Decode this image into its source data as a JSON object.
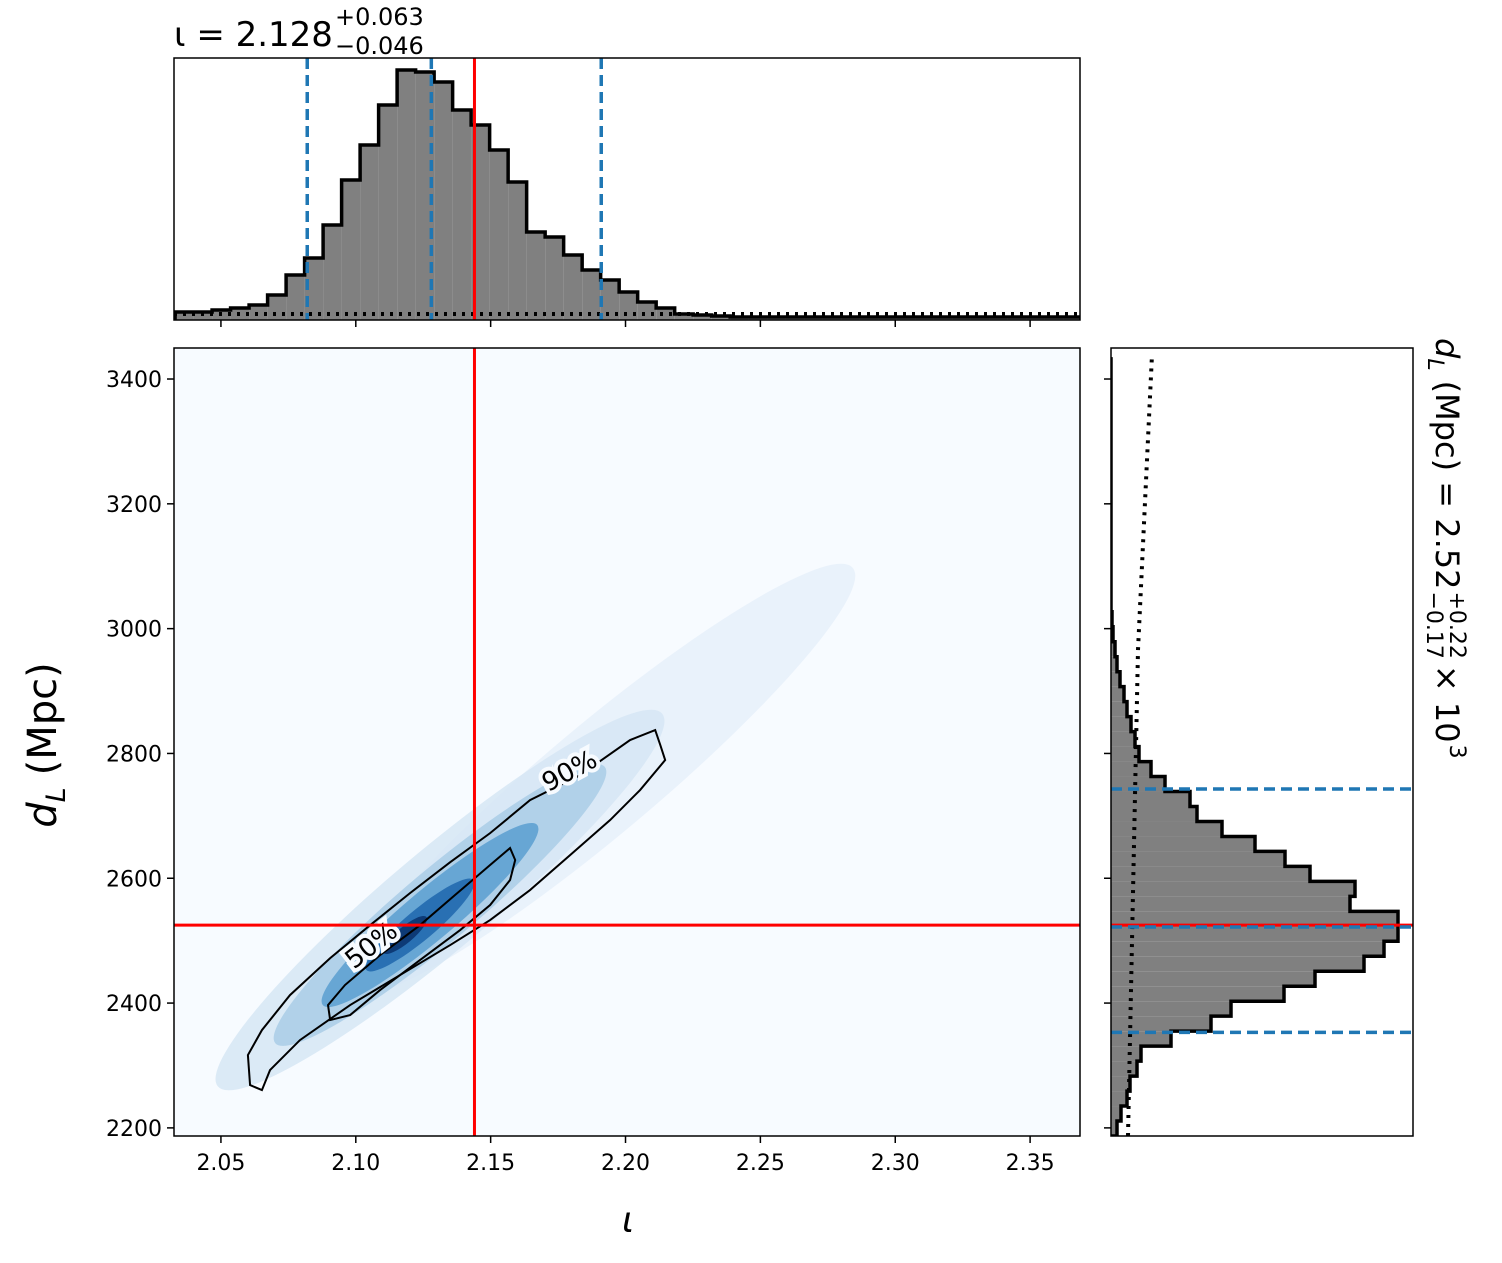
{
  "chart_data": [
    {
      "type": "histogram",
      "orientation": "vertical",
      "title": {
        "text": "ι = 2.128",
        "upper": "+0.063",
        "lower": "−0.046"
      },
      "bins": [
        2.033,
        2.03986,
        2.04672,
        2.05358,
        2.06044,
        2.0673,
        2.07416,
        2.08102,
        2.08788,
        2.09474,
        2.1016,
        2.10846,
        2.11532,
        2.12218,
        2.12904,
        2.1359,
        2.14276,
        2.14962,
        2.15648,
        2.16334,
        2.1702,
        2.17706,
        2.18392,
        2.19078,
        2.19764,
        2.2045,
        2.21136,
        2.21822,
        2.22508,
        2.23194,
        2.2388,
        2.24566,
        2.25252,
        2.25938,
        2.26624,
        2.2731,
        2.27996,
        2.28682,
        2.29368,
        2.30054,
        2.3074,
        2.31426,
        2.32112,
        2.32798,
        2.33484,
        2.3417,
        2.34856,
        2.35542,
        2.36228,
        2.36914
      ],
      "values": [
        8,
        8,
        10,
        12,
        15,
        25,
        45,
        62,
        95,
        140,
        175,
        215,
        250,
        248,
        238,
        210,
        195,
        170,
        138,
        88,
        83,
        65,
        50,
        40,
        28,
        18,
        12,
        6,
        5,
        4,
        3,
        3,
        3,
        3,
        3,
        3,
        3,
        3,
        3,
        3,
        3,
        3,
        3,
        3,
        3,
        3,
        3,
        3,
        3
      ],
      "color": "#808080",
      "edge_color": "#000000",
      "ylim": [
        0,
        262
      ],
      "prior": {
        "x": [
          2.0326,
          2.3685
        ],
        "values": [
          6,
          6
        ],
        "color": "#000000"
      },
      "quantiles": [
        2.082,
        2.128,
        2.191
      ],
      "quantile_color": "#1f77b4"
    },
    {
      "type": "contour",
      "xlabel": "ι",
      "ylabel": {
        "symbol": "d",
        "symbol_sub": "L",
        "text": "(Mpc)"
      },
      "xlim": [
        2.0326,
        2.3685
      ],
      "ylim": [
        2187,
        3449.7
      ],
      "xticks": [
        2.05,
        {
          "value": 2.1,
          "label": "2.10"
        },
        2.15,
        {
          "value": 2.2,
          "label": "2.20"
        },
        2.25,
        {
          "value": 2.3,
          "label": "2.30"
        },
        2.35
      ],
      "yticks": [
        2200,
        2400,
        2600,
        2800,
        3000,
        3200,
        3400
      ],
      "contours": [
        {
          "label": "50%",
          "x": [
            2.0905,
            2.0897,
            2.096,
            2.109,
            2.1238,
            2.1368,
            2.1498,
            2.1572,
            2.1591,
            2.1572,
            2.1498,
            2.1387,
            2.1238,
            2.109,
            2.0979
          ],
          "y": [
            2372.8,
            2396.8,
            2428.9,
            2476.9,
            2524.8,
            2573.1,
            2621.2,
            2648.4,
            2629.2,
            2597.2,
            2557.1,
            2517,
            2468.9,
            2420.8,
            2380.8
          ]
        },
        {
          "label": "90%",
          "x": [
            2.0608,
            2.06,
            2.0652,
            2.0756,
            2.0905,
            2.1053,
            2.1201,
            2.135,
            2.1498,
            2.1646,
            2.1832,
            2.2017,
            2.211,
            2.2129,
            2.2147,
            2.2054,
            2.1943,
            2.1795,
            2.1646,
            2.1498,
            2.135,
            2.1164,
            2.0979,
            2.0793,
            2.0682,
            2.0652
          ],
          "y": [
            2268.6,
            2316.7,
            2356.7,
            2412.8,
            2472.1,
            2524.8,
            2576.2,
            2625.8,
            2672.3,
            2725.2,
            2765.3,
            2821.5,
            2837.5,
            2813.5,
            2789.4,
            2741.4,
            2693.3,
            2637.2,
            2581.1,
            2533,
            2493,
            2444.9,
            2396.8,
            2340.7,
            2292.6,
            2260.6
          ]
        }
      ],
      "truth": {
        "x": 2.144,
        "y": 2525,
        "color": "#ff0000"
      }
    },
    {
      "type": "histogram",
      "orientation": "horizontal",
      "title": {
        "symbol": "d",
        "symbol_sub": "L",
        "text": "(Mpc) = 2.52",
        "upper": "+0.22",
        "lower": "−0.17",
        "factor": "× 10",
        "exponent": "3"
      },
      "bins": [
        2187,
        2211,
        2235,
        2259,
        2283,
        2307,
        2331,
        2355,
        2379,
        2403,
        2427,
        2451,
        2475,
        2499,
        2523,
        2547,
        2571,
        2595,
        2619,
        2643,
        2667,
        2691,
        2715,
        2739,
        2763,
        2787,
        2811,
        2835,
        2859,
        2883,
        2907,
        2931,
        2955,
        2979,
        3003,
        3027,
        3051,
        3075,
        3099,
        3123,
        3147,
        3171,
        3195,
        3219,
        3243,
        3267,
        3291,
        3315,
        3339,
        3363,
        3387,
        3411,
        3435
      ],
      "values": [
        6,
        10,
        16,
        19,
        26,
        30,
        60,
        100,
        120,
        173,
        204,
        253,
        273,
        287,
        287,
        239,
        244,
        199,
        174,
        144,
        111,
        86,
        79,
        54,
        40,
        28,
        24,
        20,
        16,
        13,
        9,
        6,
        4,
        2,
        1,
        0,
        0,
        0,
        0,
        0,
        0,
        0,
        0,
        0,
        0,
        0,
        0,
        0,
        0,
        0,
        0,
        0
      ],
      "color": "#808080",
      "edge_color": "#000000",
      "xlim": [
        0,
        302
      ],
      "prior": {
        "y": [
          2187,
          2966,
          3439
        ],
        "values": [
          17,
          27,
          41
        ],
        "color": "#000000"
      },
      "quantiles": [
        2353,
        2522,
        2743
      ],
      "quantile_color": "#1f77b4"
    }
  ]
}
